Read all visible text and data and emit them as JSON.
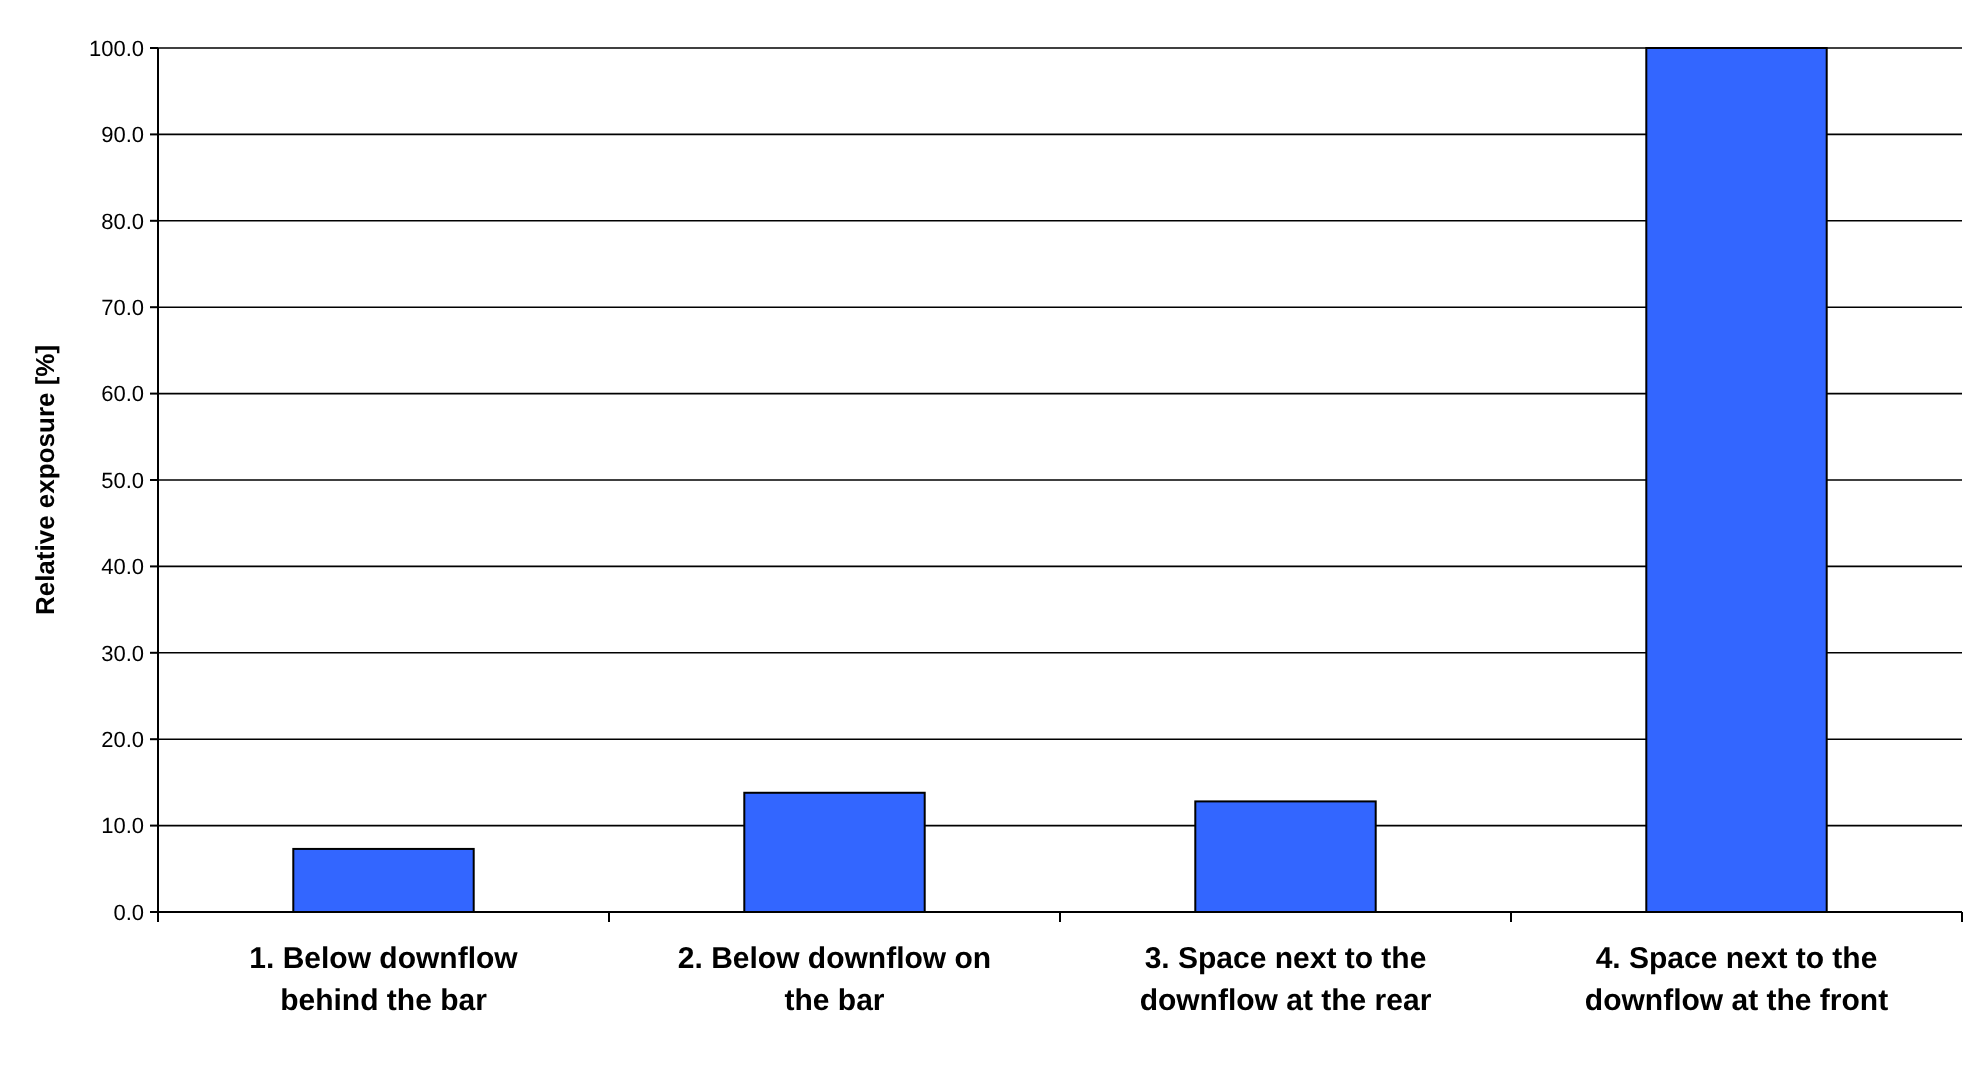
{
  "chart_data": {
    "type": "bar",
    "ylabel": "Relative exposure [%]",
    "categories": [
      "1. Below downflow behind the bar",
      "2. Below downflow on the bar",
      "3. Space next to the downflow at the rear",
      "4. Space next to the downflow at the front"
    ],
    "values": [
      7.3,
      13.8,
      12.8,
      100.0
    ],
    "color": "#3366ff",
    "ylim": [
      0,
      100
    ],
    "yticks": [
      {
        "value": 0,
        "label": "0.0"
      },
      {
        "value": 10,
        "label": "10.0"
      },
      {
        "value": 20,
        "label": "20.0"
      },
      {
        "value": 30,
        "label": "30.0"
      },
      {
        "value": 40,
        "label": "40.0"
      },
      {
        "value": 50,
        "label": "50.0"
      },
      {
        "value": 60,
        "label": "60.0"
      },
      {
        "value": 70,
        "label": "70.0"
      },
      {
        "value": 80,
        "label": "80.0"
      },
      {
        "value": 90,
        "label": "90.0"
      },
      {
        "value": 100,
        "label": "100.0"
      }
    ],
    "grid": "y"
  }
}
